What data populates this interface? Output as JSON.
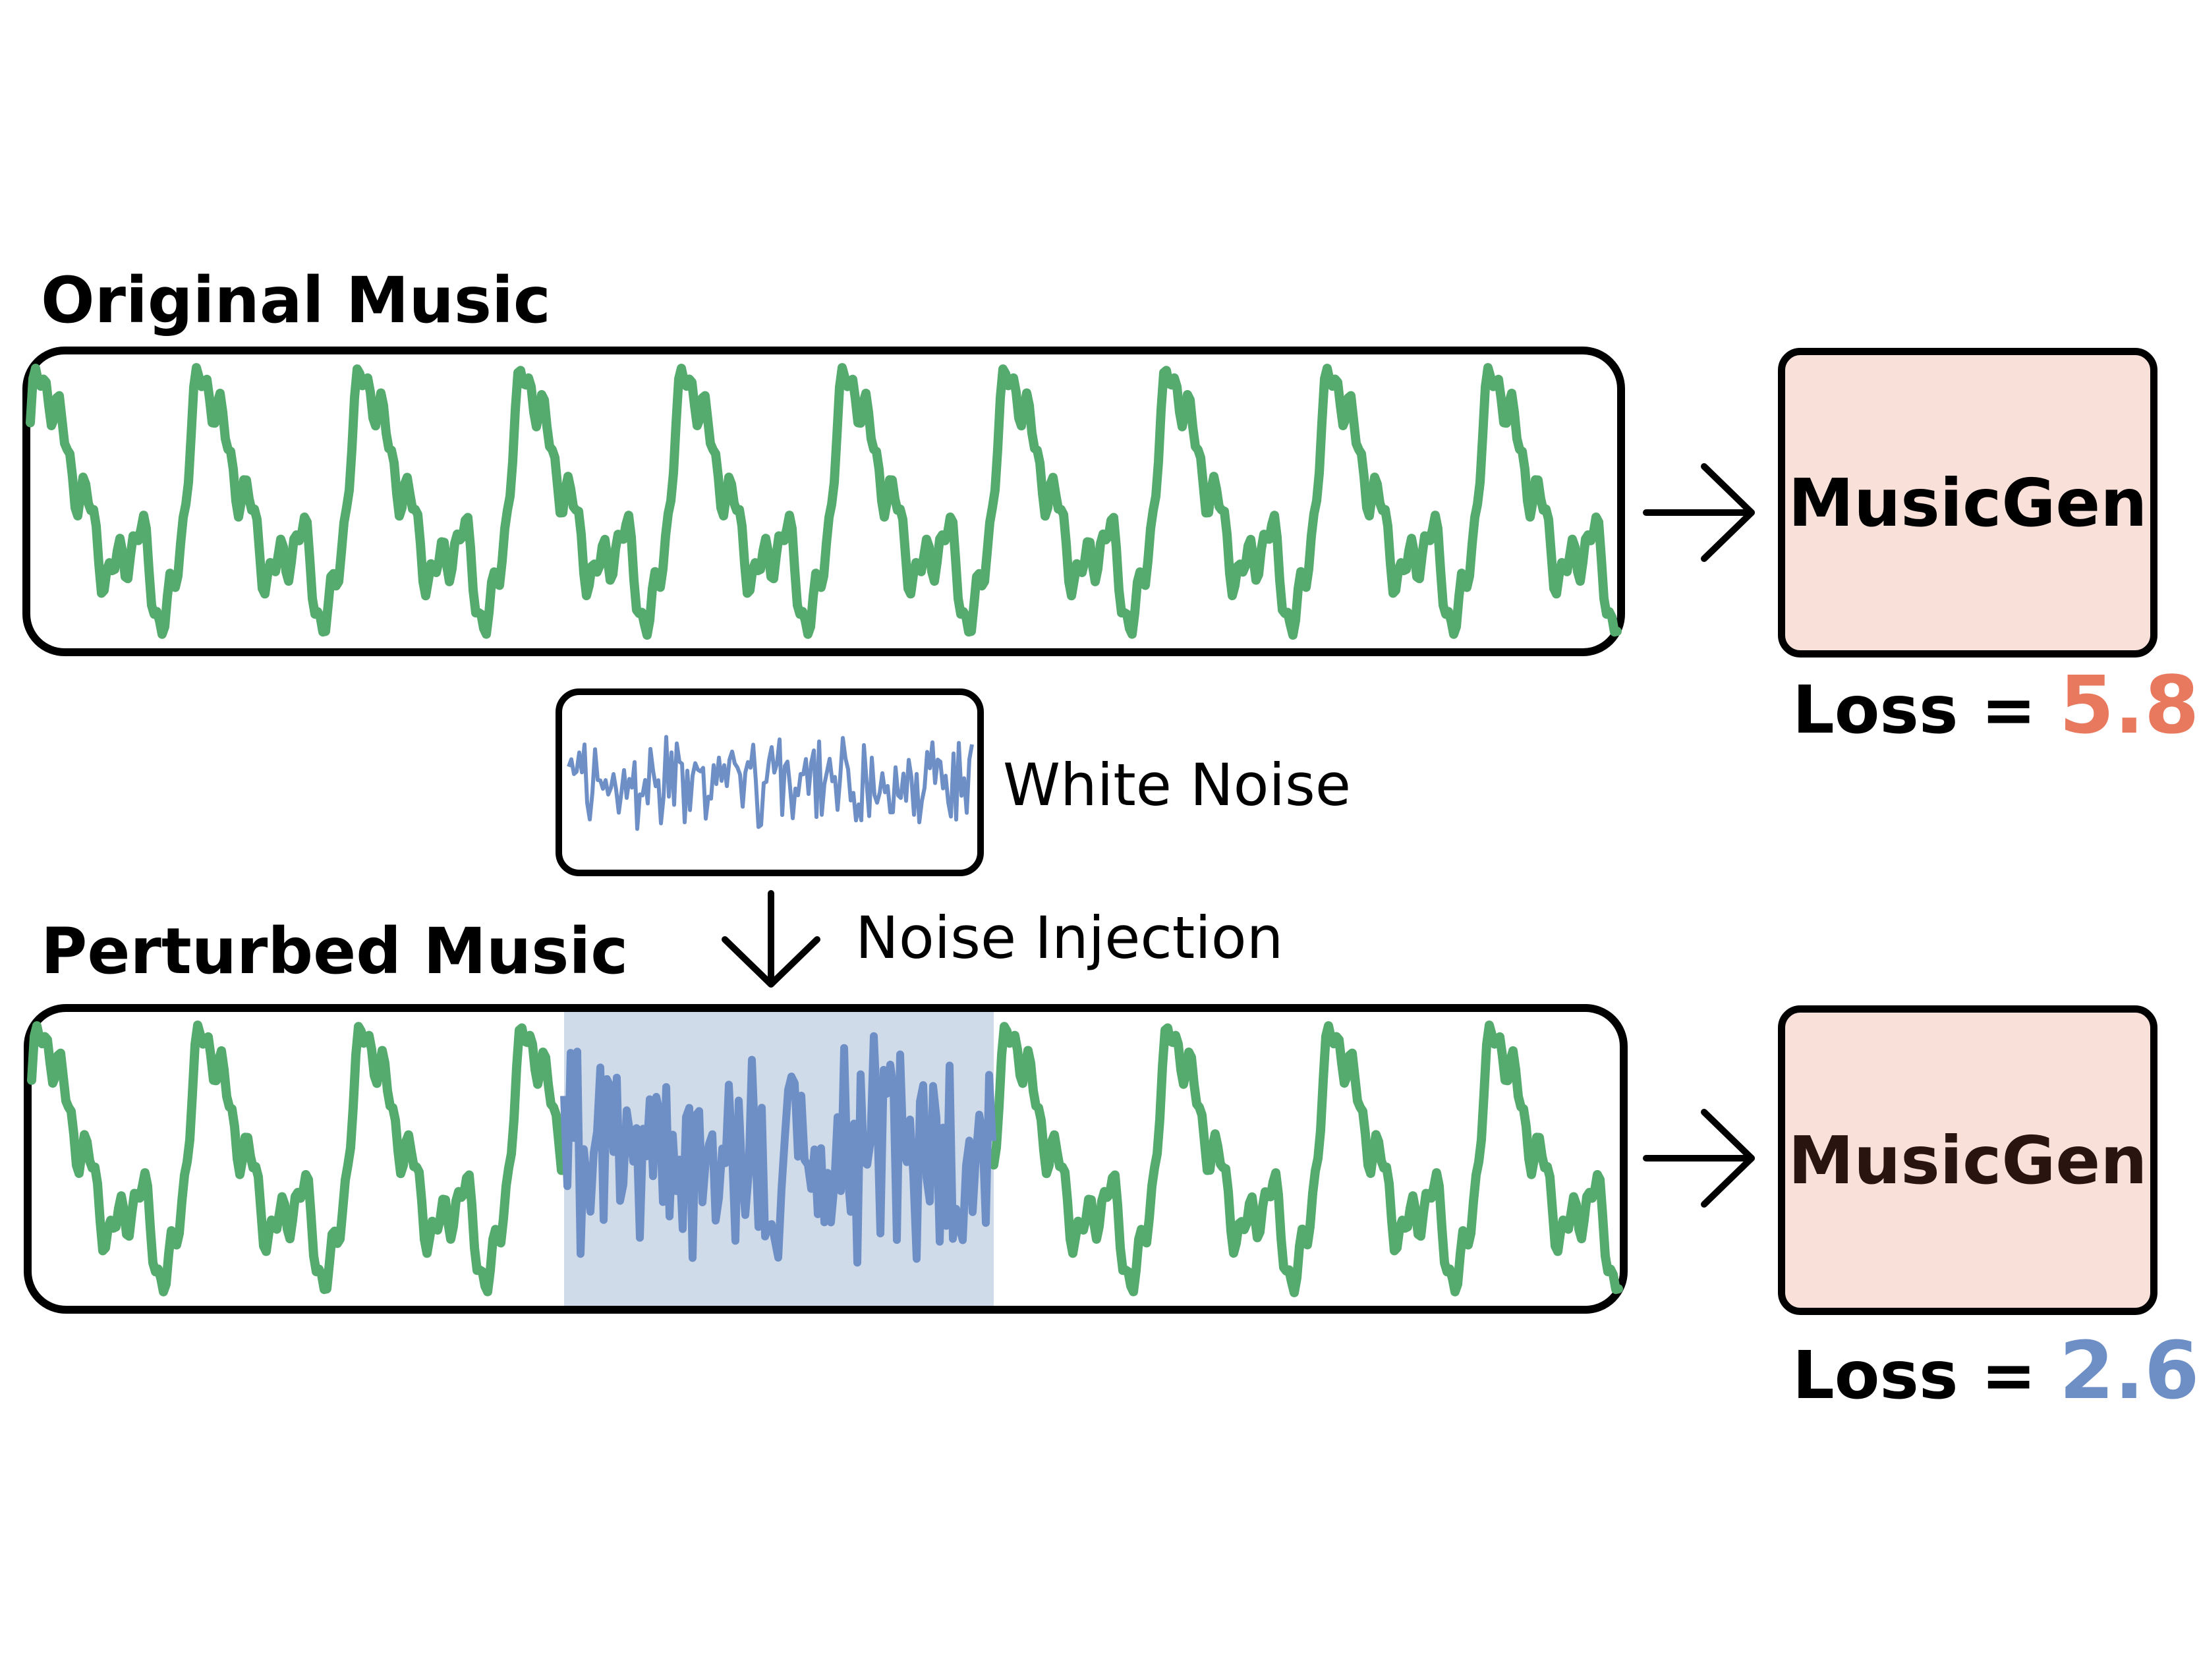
{
  "top": {
    "title": "Original Music",
    "model_label": "MusicGen",
    "loss_label": "Loss =",
    "loss_value": "5.8"
  },
  "noise": {
    "label": "White Noise",
    "injection_label": "Noise Injection"
  },
  "bottom": {
    "title": "Perturbed Music",
    "model_label": "MusicGen",
    "loss_label": "Loss =",
    "loss_value": "2.6"
  },
  "colors": {
    "wave": "#55aa6e",
    "noise": "#6e8fc6",
    "noise_highlight": "#d0dbea",
    "model_fill": "#f9e1da",
    "loss_high": "#e8795e",
    "loss_low": "#6e8fc6",
    "model_text_bottom": "#2a1410"
  },
  "icons": {
    "arrow_right": "arrow-right-icon",
    "arrow_down": "arrow-down-icon"
  }
}
